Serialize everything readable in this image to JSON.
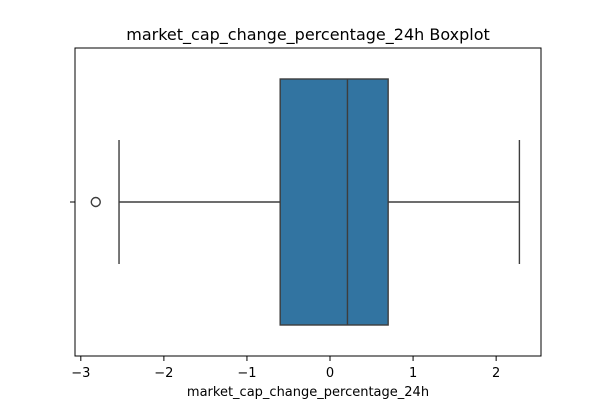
{
  "chart_data": {
    "type": "boxplot",
    "title": "market_cap_change_percentage_24h Boxplot",
    "xlabel": "market_cap_change_percentage_24h",
    "ylabel": "",
    "xlim": [
      -3.07,
      2.54
    ],
    "xticks": [
      -3,
      -2,
      -1,
      0,
      1,
      2
    ],
    "xtick_labels": [
      "−3",
      "−2",
      "−1",
      "0",
      "1",
      "2"
    ],
    "grid": false,
    "orientation": "horizontal",
    "stats": {
      "whisker_low": -2.54,
      "q1": -0.6,
      "median": 0.21,
      "q3": 0.7,
      "whisker_high": 2.28
    },
    "outliers": [
      -2.82
    ],
    "colors": {
      "box_fill": "#3274a1",
      "line": "#3d3d3d",
      "axes": "#000000"
    }
  }
}
